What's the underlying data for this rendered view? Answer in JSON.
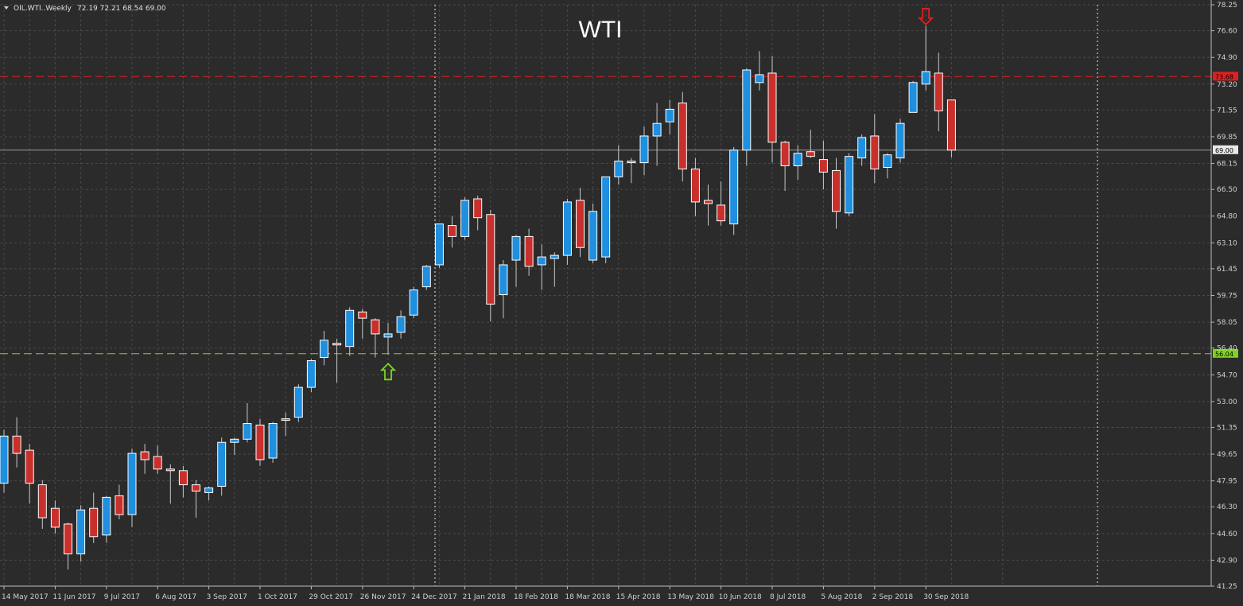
{
  "header": {
    "symbol_label": "OIL.WTI..Weekly",
    "ohlc_label": "72.19 72.21 68.54 69.00"
  },
  "chart_data": {
    "type": "candlestick",
    "title": "WTI",
    "timeframe": "Weekly",
    "ylim": [
      41.25,
      78.25
    ],
    "y_ticks": [
      "78.25",
      "76.60",
      "74.90",
      "73.20",
      "71.55",
      "69.85",
      "68.15",
      "66.50",
      "64.80",
      "63.10",
      "61.45",
      "59.75",
      "58.05",
      "56.40",
      "54.70",
      "53.00",
      "51.35",
      "49.65",
      "47.95",
      "46.30",
      "44.60",
      "42.90",
      "41.25"
    ],
    "x_tick_labels": [
      "14 May 2017",
      "11 Jun 2017",
      "9 Jul 2017",
      "6 Aug 2017",
      "3 Sep 2017",
      "1 Oct 2017",
      "29 Oct 2017",
      "26 Nov 2017",
      "24 Dec 2017",
      "21 Jan 2018",
      "18 Feb 2018",
      "18 Mar 2018",
      "15 Apr 2018",
      "13 May 2018",
      "10 Jun 2018",
      "8 Jul 2018",
      "5 Aug 2018",
      "2 Sep 2018",
      "30 Sep 2018"
    ],
    "grid": true,
    "colors": {
      "background": "#2b2b2b",
      "grid": "#4a4a4a",
      "bull": "#1f8fe0",
      "bear": "#c9302c",
      "wick": "#c8c8c8",
      "resistance": "#e02020",
      "support": "#7ed321",
      "current_line": "#9a9a9a"
    },
    "candles": [
      {
        "o": 47.8,
        "h": 51.2,
        "l": 47.2,
        "c": 50.8
      },
      {
        "o": 50.8,
        "h": 52.0,
        "l": 48.8,
        "c": 49.7
      },
      {
        "o": 49.9,
        "h": 50.3,
        "l": 46.5,
        "c": 47.8
      },
      {
        "o": 47.7,
        "h": 48.0,
        "l": 44.9,
        "c": 45.6
      },
      {
        "o": 46.2,
        "h": 46.7,
        "l": 44.6,
        "c": 45.0
      },
      {
        "o": 45.2,
        "h": 45.3,
        "l": 42.3,
        "c": 43.3
      },
      {
        "o": 43.3,
        "h": 46.4,
        "l": 42.8,
        "c": 46.1
      },
      {
        "o": 46.2,
        "h": 47.2,
        "l": 44.0,
        "c": 44.4
      },
      {
        "o": 44.5,
        "h": 47.0,
        "l": 44.0,
        "c": 46.9
      },
      {
        "o": 47.0,
        "h": 47.7,
        "l": 45.5,
        "c": 45.8
      },
      {
        "o": 45.8,
        "h": 50.0,
        "l": 45.0,
        "c": 49.7
      },
      {
        "o": 49.8,
        "h": 50.3,
        "l": 48.4,
        "c": 49.3
      },
      {
        "o": 49.5,
        "h": 50.2,
        "l": 48.4,
        "c": 48.7
      },
      {
        "o": 48.7,
        "h": 49.0,
        "l": 46.5,
        "c": 48.6
      },
      {
        "o": 48.6,
        "h": 48.9,
        "l": 46.9,
        "c": 47.7
      },
      {
        "o": 47.7,
        "h": 48.0,
        "l": 45.6,
        "c": 47.3
      },
      {
        "o": 47.2,
        "h": 47.6,
        "l": 46.7,
        "c": 47.5
      },
      {
        "o": 47.6,
        "h": 50.7,
        "l": 47.0,
        "c": 50.4
      },
      {
        "o": 50.4,
        "h": 50.7,
        "l": 49.6,
        "c": 50.6
      },
      {
        "o": 50.6,
        "h": 52.9,
        "l": 50.4,
        "c": 51.6
      },
      {
        "o": 51.5,
        "h": 51.9,
        "l": 48.9,
        "c": 49.3
      },
      {
        "o": 49.4,
        "h": 51.7,
        "l": 49.1,
        "c": 51.6
      },
      {
        "o": 51.8,
        "h": 52.3,
        "l": 50.8,
        "c": 51.9
      },
      {
        "o": 52.0,
        "h": 54.1,
        "l": 51.7,
        "c": 53.9
      },
      {
        "o": 53.9,
        "h": 55.7,
        "l": 53.6,
        "c": 55.6
      },
      {
        "o": 55.8,
        "h": 57.5,
        "l": 55.3,
        "c": 56.9
      },
      {
        "o": 56.7,
        "h": 57.0,
        "l": 54.2,
        "c": 56.6
      },
      {
        "o": 56.5,
        "h": 59.0,
        "l": 55.9,
        "c": 58.8
      },
      {
        "o": 58.7,
        "h": 58.9,
        "l": 57.0,
        "c": 58.3
      },
      {
        "o": 58.2,
        "h": 58.3,
        "l": 55.8,
        "c": 57.3
      },
      {
        "o": 57.1,
        "h": 58.0,
        "l": 56.0,
        "c": 57.3
      },
      {
        "o": 57.4,
        "h": 58.8,
        "l": 57.0,
        "c": 58.4
      },
      {
        "o": 58.5,
        "h": 60.3,
        "l": 58.3,
        "c": 60.1
      },
      {
        "o": 60.3,
        "h": 61.7,
        "l": 60.1,
        "c": 61.6
      },
      {
        "o": 61.7,
        "h": 64.3,
        "l": 61.5,
        "c": 64.3
      },
      {
        "o": 64.2,
        "h": 64.8,
        "l": 62.8,
        "c": 63.5
      },
      {
        "o": 63.5,
        "h": 66.0,
        "l": 63.3,
        "c": 65.8
      },
      {
        "o": 65.9,
        "h": 66.1,
        "l": 63.9,
        "c": 64.7
      },
      {
        "o": 64.9,
        "h": 65.2,
        "l": 58.1,
        "c": 59.2
      },
      {
        "o": 59.8,
        "h": 62.0,
        "l": 58.3,
        "c": 61.7
      },
      {
        "o": 62.0,
        "h": 63.6,
        "l": 60.3,
        "c": 63.5
      },
      {
        "o": 63.5,
        "h": 64.0,
        "l": 61.0,
        "c": 61.6
      },
      {
        "o": 61.7,
        "h": 63.0,
        "l": 60.1,
        "c": 62.2
      },
      {
        "o": 62.1,
        "h": 62.5,
        "l": 60.3,
        "c": 62.3
      },
      {
        "o": 62.3,
        "h": 65.9,
        "l": 61.7,
        "c": 65.7
      },
      {
        "o": 65.8,
        "h": 66.6,
        "l": 62.2,
        "c": 62.8
      },
      {
        "o": 62.0,
        "h": 65.6,
        "l": 61.8,
        "c": 65.1
      },
      {
        "o": 62.2,
        "h": 67.3,
        "l": 61.8,
        "c": 67.3
      },
      {
        "o": 67.3,
        "h": 69.3,
        "l": 66.8,
        "c": 68.3
      },
      {
        "o": 68.3,
        "h": 68.5,
        "l": 66.9,
        "c": 68.2
      },
      {
        "o": 68.2,
        "h": 70.5,
        "l": 67.4,
        "c": 69.9
      },
      {
        "o": 69.9,
        "h": 72.0,
        "l": 68.0,
        "c": 70.7
      },
      {
        "o": 70.8,
        "h": 72.2,
        "l": 70.0,
        "c": 71.6
      },
      {
        "o": 72.0,
        "h": 72.7,
        "l": 67.0,
        "c": 67.8
      },
      {
        "o": 67.8,
        "h": 68.5,
        "l": 64.8,
        "c": 65.7
      },
      {
        "o": 65.8,
        "h": 66.8,
        "l": 64.2,
        "c": 65.6
      },
      {
        "o": 65.5,
        "h": 67.0,
        "l": 64.2,
        "c": 64.5
      },
      {
        "o": 64.3,
        "h": 69.2,
        "l": 63.6,
        "c": 69.0
      },
      {
        "o": 69.0,
        "h": 74.2,
        "l": 68.0,
        "c": 74.1
      },
      {
        "o": 73.3,
        "h": 75.3,
        "l": 72.8,
        "c": 73.8
      },
      {
        "o": 73.9,
        "h": 75.0,
        "l": 68.2,
        "c": 69.5
      },
      {
        "o": 69.5,
        "h": 69.6,
        "l": 66.4,
        "c": 68.0
      },
      {
        "o": 68.0,
        "h": 69.3,
        "l": 67.1,
        "c": 68.8
      },
      {
        "o": 68.9,
        "h": 70.3,
        "l": 68.5,
        "c": 68.6
      },
      {
        "o": 68.4,
        "h": 69.6,
        "l": 66.5,
        "c": 67.6
      },
      {
        "o": 67.7,
        "h": 68.5,
        "l": 64.0,
        "c": 65.1
      },
      {
        "o": 65.0,
        "h": 68.8,
        "l": 64.8,
        "c": 68.6
      },
      {
        "o": 68.5,
        "h": 70.0,
        "l": 68.0,
        "c": 69.8
      },
      {
        "o": 69.9,
        "h": 71.3,
        "l": 66.9,
        "c": 67.8
      },
      {
        "o": 67.9,
        "h": 68.8,
        "l": 67.2,
        "c": 68.7
      },
      {
        "o": 68.5,
        "h": 71.0,
        "l": 68.2,
        "c": 70.7
      },
      {
        "o": 71.4,
        "h": 73.4,
        "l": 71.4,
        "c": 73.3
      },
      {
        "o": 73.2,
        "h": 76.9,
        "l": 72.8,
        "c": 74.0
      },
      {
        "o": 73.9,
        "h": 75.2,
        "l": 70.2,
        "c": 71.5
      },
      {
        "o": 72.19,
        "h": 72.21,
        "l": 68.54,
        "c": 69.0
      }
    ],
    "levels": {
      "resistance": {
        "value": 73.68,
        "label": "73.68"
      },
      "support": {
        "value": 56.04,
        "label": "56.04"
      },
      "current": {
        "value": 69.0,
        "label": "69.00"
      }
    },
    "markers": [
      {
        "name": "buy-arrow",
        "direction": "up",
        "candle_index": 30,
        "price": 54.9
      },
      {
        "name": "sell-arrow",
        "direction": "down",
        "candle_index": 72,
        "price": 77.5
      }
    ]
  }
}
